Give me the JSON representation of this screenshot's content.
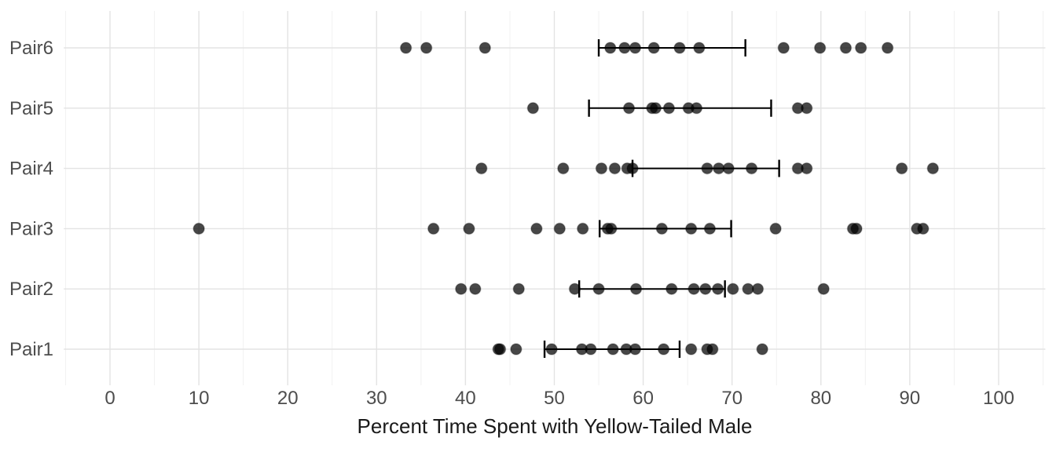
{
  "chart_data": {
    "type": "scatter",
    "title": "",
    "xlabel": "Percent Time Spent with Yellow-Tailed Male",
    "ylabel": "",
    "x_ticks": [
      0,
      10,
      20,
      30,
      40,
      50,
      60,
      70,
      80,
      90,
      100
    ],
    "xlim": [
      -5.2,
      105.2
    ],
    "categories": [
      "Pair1",
      "Pair2",
      "Pair3",
      "Pair4",
      "Pair5",
      "Pair6"
    ],
    "grid": "major-x, minor-x, major-y on; legend none",
    "legend": "none",
    "series": [
      {
        "name": "Pair1",
        "points": [
          43.7,
          43.9,
          45.7,
          49.7,
          53.1,
          54.1,
          56.6,
          58.1,
          59.1,
          62.3,
          65.4,
          67.2,
          67.8,
          73.4
        ],
        "errorbar": {
          "low": 48.9,
          "high": 64.1
        }
      },
      {
        "name": "Pair2",
        "points": [
          39.5,
          41.1,
          46.0,
          52.3,
          55.0,
          59.2,
          63.2,
          65.7,
          67.0,
          68.4,
          70.1,
          71.8,
          72.9,
          80.3
        ],
        "errorbar": {
          "low": 52.8,
          "high": 69.2
        }
      },
      {
        "name": "Pair3",
        "points": [
          10.0,
          36.4,
          40.4,
          48.0,
          50.6,
          53.2,
          56.0,
          56.4,
          62.1,
          65.4,
          67.5,
          74.9,
          83.6,
          84.0,
          90.8,
          91.5
        ],
        "errorbar": {
          "low": 55.1,
          "high": 69.9
        }
      },
      {
        "name": "Pair4",
        "points": [
          41.8,
          51.0,
          55.3,
          56.8,
          58.2,
          58.8,
          67.2,
          68.5,
          69.6,
          72.2,
          77.4,
          78.4,
          89.1,
          92.6
        ],
        "errorbar": {
          "low": 58.8,
          "high": 75.3
        }
      },
      {
        "name": "Pair5",
        "points": [
          47.6,
          58.4,
          61.0,
          61.4,
          62.9,
          65.1,
          66.0,
          77.4,
          78.4
        ],
        "errorbar": {
          "low": 53.9,
          "high": 74.4
        }
      },
      {
        "name": "Pair6",
        "points": [
          33.3,
          35.6,
          42.2,
          56.3,
          57.9,
          59.1,
          61.2,
          64.1,
          66.3,
          75.8,
          79.9,
          82.8,
          84.5,
          87.5
        ],
        "errorbar": {
          "low": 55.0,
          "high": 71.5
        }
      }
    ],
    "point_style": {
      "radius": 7,
      "fill": "rgba(0,0,0,0.72)",
      "stroke": "rgba(0,0,0,0.22)"
    },
    "errorbar_style": {
      "color": "#000000",
      "line_width": 2,
      "cap_half_height": 11
    },
    "colors": {
      "background": "#ffffff",
      "grid_major": "#e3e3e3",
      "grid_minor": "#f1f1f1",
      "axis_text": "#4d4d4d",
      "title_text": "#1a1a1a"
    }
  }
}
